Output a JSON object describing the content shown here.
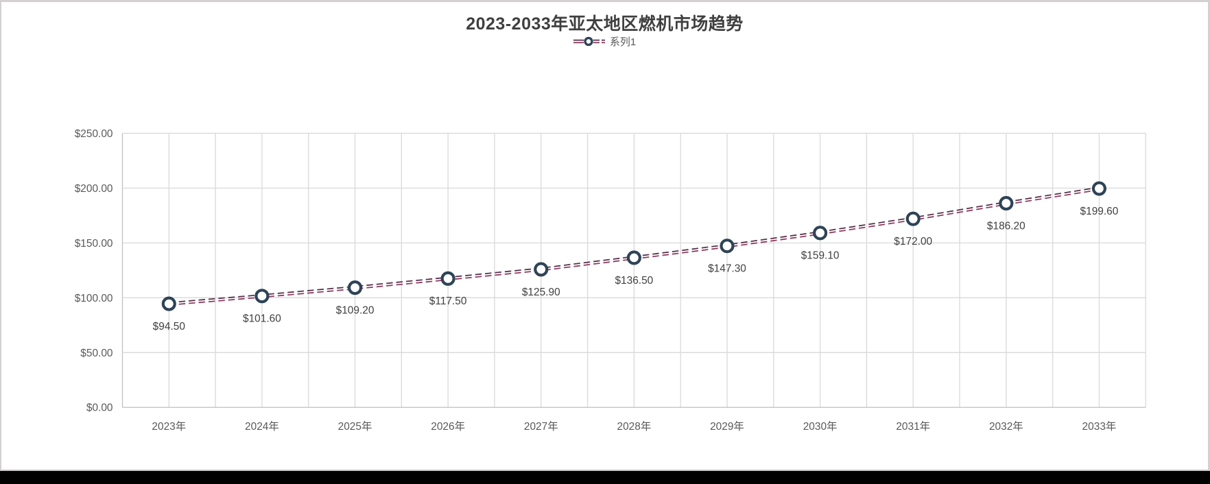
{
  "frame": {
    "canvas_background": "#ffffff",
    "frame_border_color": "#d4d0d0",
    "bottom_bar_color": "#010101"
  },
  "chart_data": {
    "type": "line",
    "title": "2023-2033年亚太地区燃机市场趋势",
    "legend": {
      "position": "top",
      "entries": [
        {
          "label": "系列1",
          "marker": "double-dashed-line-with-circle"
        }
      ]
    },
    "categories": [
      "2023年",
      "2024年",
      "2025年",
      "2026年",
      "2027年",
      "2028年",
      "2029年",
      "2030年",
      "2031年",
      "2032年",
      "2033年"
    ],
    "series": [
      {
        "name": "系列1",
        "values": [
          94.5,
          101.6,
          109.2,
          117.5,
          125.9,
          136.5,
          147.3,
          159.1,
          172.0,
          186.2,
          199.6
        ],
        "data_labels": [
          "$94.50",
          "$101.60",
          "$109.20",
          "$117.50",
          "$125.90",
          "$136.50",
          "$147.30",
          "$159.10",
          "$172.00",
          "$186.20",
          "$199.60"
        ],
        "line_style": "double-dashed",
        "line_color_top": "#57304d",
        "line_color_bottom": "#8f3a5e",
        "marker_shape": "circle",
        "marker_stroke": "#2e4356",
        "marker_fill": "#ffffff"
      }
    ],
    "y_axis": {
      "min": 0,
      "max": 250,
      "step": 50,
      "tick_labels": [
        "$0.00",
        "$50.00",
        "$100.00",
        "$150.00",
        "$200.00",
        "$250.00"
      ]
    },
    "x_axis": {
      "tick_labels": [
        "2023年",
        "2024年",
        "2025年",
        "2026年",
        "2027年",
        "2028年",
        "2029年",
        "2030年",
        "2031年",
        "2032年",
        "2033年"
      ]
    },
    "grid": {
      "horizontal": true,
      "vertical": true,
      "vertical_lines_per_category": 2,
      "gridline_color": "#d9d9d9",
      "axis_line_color": "#bfbfbf"
    },
    "text_colors": {
      "title": "#3f3f3f",
      "axis_labels": "#595959",
      "data_labels": "#404040"
    }
  }
}
